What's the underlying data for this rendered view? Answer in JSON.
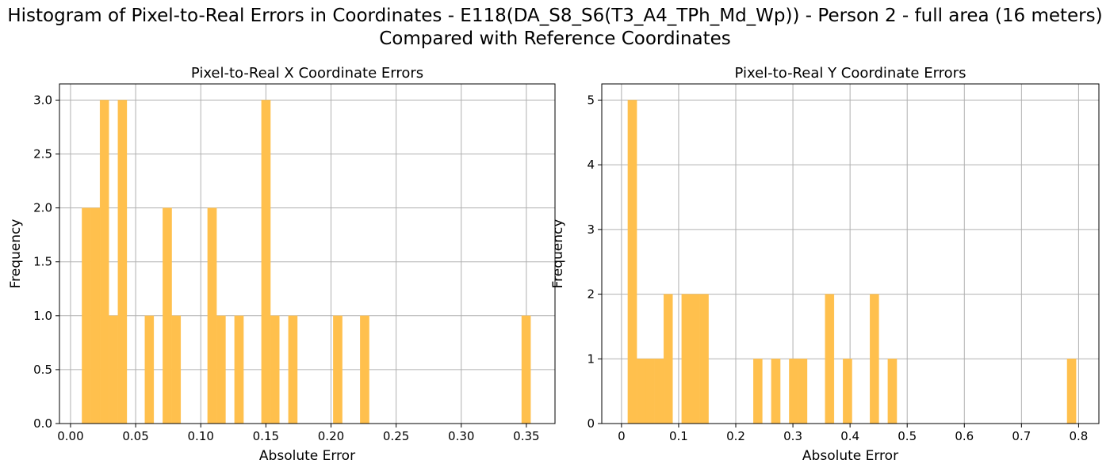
{
  "figure": {
    "suptitle_line1": "Histogram of Pixel-to-Real Errors in Coordinates - E118(DA_S8_S6(T3_A4_TPh_Md_Wp)) - Person 2 - full area (16 meters)",
    "suptitle_line2": "Compared with Reference Coordinates"
  },
  "colors": {
    "bar": "#FFC04D",
    "grid": "#b0b0b0",
    "axis": "#000000"
  },
  "chart_data": [
    {
      "type": "bar",
      "title": "Pixel-to-Real X Coordinate Errors",
      "xlabel": "Absolute Error",
      "ylabel": "Frequency",
      "xlim": [
        -0.0085,
        0.372
      ],
      "ylim": [
        0,
        3.15
      ],
      "xticks": [
        0.0,
        0.05,
        0.1,
        0.15,
        0.2,
        0.25,
        0.3,
        0.35
      ],
      "xtick_labels": [
        "0.00",
        "0.05",
        "0.10",
        "0.15",
        "0.20",
        "0.25",
        "0.30",
        "0.35"
      ],
      "yticks": [
        0.0,
        0.5,
        1.0,
        1.5,
        2.0,
        2.5,
        3.0
      ],
      "ytick_labels": [
        "0.0",
        "0.5",
        "1.0",
        "1.5",
        "2.0",
        "2.5",
        "3.0"
      ],
      "grid": true,
      "bin_start": 0.0088,
      "bin_width": 0.00689,
      "counts": [
        2,
        2,
        3,
        1,
        3,
        0,
        0,
        1,
        0,
        2,
        1,
        0,
        0,
        0,
        2,
        1,
        0,
        1,
        0,
        0,
        3,
        1,
        0,
        1,
        0,
        0,
        0,
        0,
        1,
        0,
        0,
        1,
        0,
        0,
        0,
        0,
        0,
        0,
        0,
        0,
        0,
        0,
        0,
        0,
        0,
        0,
        0,
        0,
        0,
        1
      ]
    },
    {
      "type": "bar",
      "title": "Pixel-to-Real Y Coordinate Errors",
      "xlabel": "Absolute Error",
      "ylabel": "Frequency",
      "xlim": [
        -0.0345,
        0.8355
      ],
      "ylim": [
        0,
        5.25
      ],
      "xticks": [
        0.0,
        0.1,
        0.2,
        0.3,
        0.4,
        0.5,
        0.6,
        0.7,
        0.8
      ],
      "xtick_labels": [
        "0",
        "0.1",
        "0.2",
        "0.3",
        "0.4",
        "0.5",
        "0.6",
        "0.7",
        "0.8"
      ],
      "yticks": [
        0,
        1,
        2,
        3,
        4,
        5
      ],
      "ytick_labels": [
        "0",
        "1",
        "2",
        "3",
        "4",
        "5"
      ],
      "grid": true,
      "bin_start": 0.0111,
      "bin_width": 0.01569,
      "counts": [
        5,
        1,
        1,
        1,
        2,
        0,
        2,
        2,
        2,
        0,
        0,
        0,
        0,
        0,
        1,
        0,
        1,
        0,
        1,
        1,
        0,
        0,
        2,
        0,
        1,
        0,
        0,
        2,
        0,
        1,
        0,
        0,
        0,
        0,
        0,
        0,
        0,
        0,
        0,
        0,
        0,
        0,
        0,
        0,
        0,
        0,
        0,
        0,
        0,
        1
      ]
    }
  ]
}
